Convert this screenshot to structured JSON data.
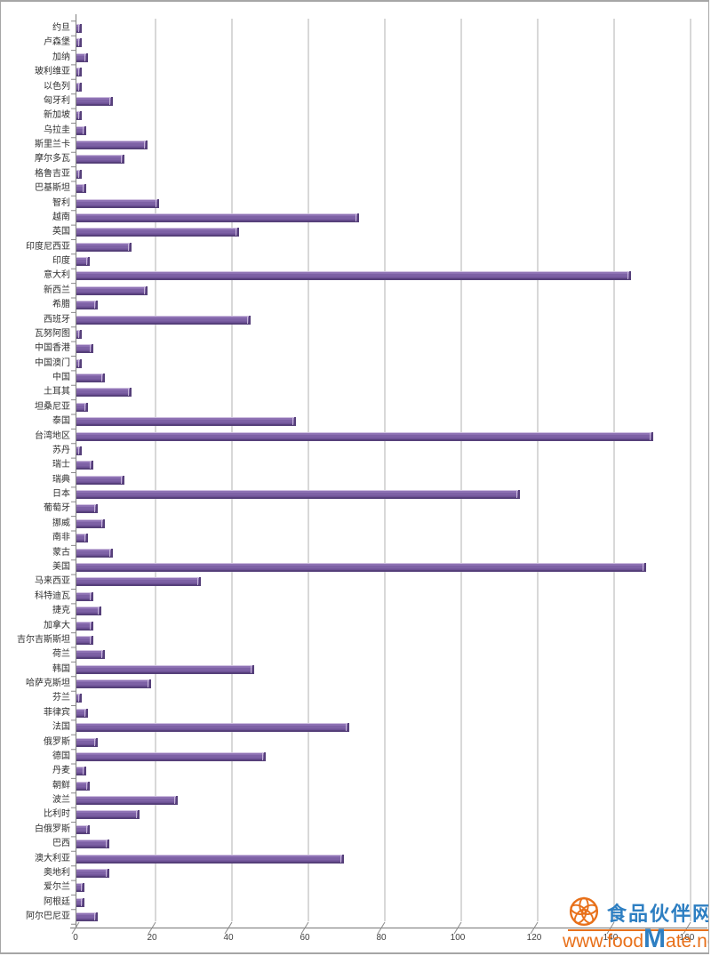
{
  "chart_data": {
    "type": "bar",
    "orientation": "horizontal",
    "title": "",
    "xlabel": "",
    "ylabel": "",
    "xlim": [
      0,
      160
    ],
    "x_ticks": [
      0,
      20,
      40,
      60,
      80,
      100,
      120,
      140,
      160
    ],
    "grid": true,
    "categories": [
      "约旦",
      "卢森堡",
      "加纳",
      "玻利维亚",
      "以色列",
      "匈牙利",
      "新加坡",
      "乌拉圭",
      "斯里兰卡",
      "摩尔多瓦",
      "格鲁吉亚",
      "巴基斯坦",
      "智利",
      "越南",
      "英国",
      "印度尼西亚",
      "印度",
      "意大利",
      "新西兰",
      "希腊",
      "西班牙",
      "瓦努阿图",
      "中国香港",
      "中国澳门",
      "中国",
      "土耳其",
      "坦桑尼亚",
      "泰国",
      "台湾地区",
      "苏丹",
      "瑞士",
      "瑞典",
      "日本",
      "葡萄牙",
      "挪威",
      "南非",
      "蒙古",
      "美国",
      "马来西亚",
      "科特迪瓦",
      "捷克",
      "加拿大",
      "吉尔吉斯斯坦",
      "荷兰",
      "韩国",
      "哈萨克斯坦",
      "芬兰",
      "菲律宾",
      "法国",
      "俄罗斯",
      "德国",
      "丹麦",
      "朝鲜",
      "波兰",
      "比利时",
      "白俄罗斯",
      "巴西",
      "澳大利亚",
      "奥地利",
      "爱尔兰",
      "阿根廷",
      "阿尔巴尼亚"
    ],
    "values": [
      1.5,
      1.5,
      3,
      1.5,
      1.5,
      9.5,
      1.5,
      2.5,
      18.5,
      12.5,
      1.5,
      2.5,
      21.5,
      74,
      42.5,
      14.5,
      3.5,
      145,
      18.5,
      5.5,
      45.5,
      1.5,
      4.5,
      1.5,
      7.5,
      14.5,
      3,
      57.5,
      151,
      1.5,
      4.5,
      12.5,
      116,
      5.5,
      7.5,
      3,
      9.5,
      149,
      32.5,
      4.5,
      6.5,
      4.5,
      4.5,
      7.5,
      46.5,
      19.5,
      1.5,
      3,
      71.5,
      5.5,
      49.5,
      2.5,
      3.5,
      26.5,
      16.5,
      3.5,
      8.5,
      70,
      8.5,
      2,
      2,
      5.5
    ],
    "colors": {
      "bar_fill": "#7d61a5",
      "bar_highlight": "#cfc0e0",
      "bar_shadow": "#56407a",
      "gridline": "#bdbdbd",
      "axis": "#8a8a8a",
      "tick_text": "#3f3f3f"
    },
    "legend": null
  },
  "watermark": {
    "site_name": "食品伙伴网",
    "url": "www.foodMate.net",
    "url_prefix": "www.food",
    "url_m": "M",
    "url_suffix": "ate.net",
    "orange": "#e8701a",
    "blue": "#2e7fc2"
  }
}
